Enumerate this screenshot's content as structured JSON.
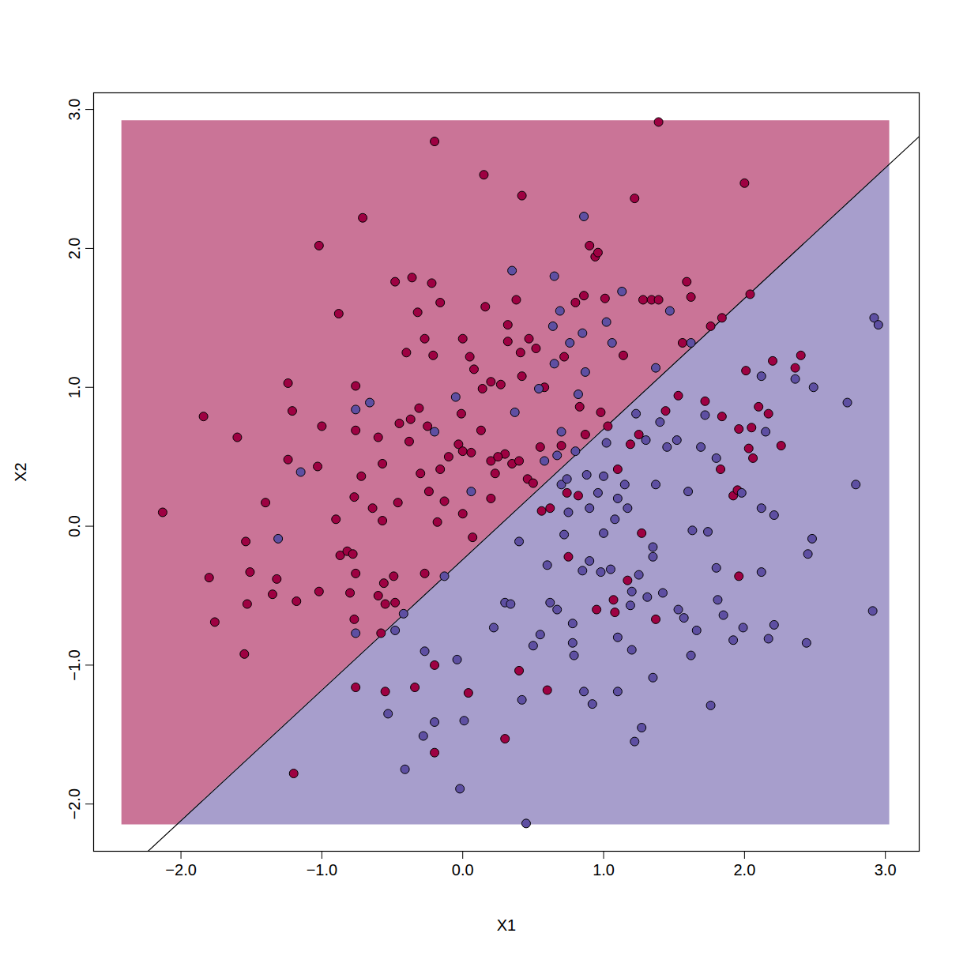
{
  "chart_data": {
    "type": "scatter",
    "xlabel": "X1",
    "ylabel": "X2",
    "xlim": [
      -2.62,
      3.24
    ],
    "ylim": [
      -2.34,
      3.12
    ],
    "xticks": [
      -2,
      -1,
      0,
      1,
      2,
      3
    ],
    "yticks": [
      -2,
      -1,
      0,
      1,
      2,
      3
    ],
    "boundary": {
      "slope": 0.94,
      "intercept": -0.24
    },
    "regions": {
      "xlim": [
        -2.42,
        3.03
      ],
      "ylim": [
        -2.15,
        2.92
      ],
      "colors": [
        "#9E0142",
        "#5E4FA2"
      ]
    },
    "series": [
      {
        "color": "#9E0142",
        "points": [
          [
            -2.13,
            0.1
          ],
          [
            -1.84,
            0.79
          ],
          [
            -1.8,
            -0.37
          ],
          [
            -1.76,
            -0.69
          ],
          [
            -1.6,
            0.64
          ],
          [
            -1.55,
            -0.92
          ],
          [
            -1.54,
            -0.11
          ],
          [
            -1.53,
            -0.56
          ],
          [
            -1.51,
            -0.33
          ],
          [
            -1.4,
            0.17
          ],
          [
            -1.35,
            -0.49
          ],
          [
            -1.32,
            -0.38
          ],
          [
            -1.24,
            1.03
          ],
          [
            -1.24,
            0.48
          ],
          [
            -1.21,
            0.83
          ],
          [
            -1.18,
            -0.54
          ],
          [
            -1.2,
            -1.78
          ],
          [
            -1.02,
            2.02
          ],
          [
            -1.02,
            -0.47
          ],
          [
            -1.0,
            0.72
          ],
          [
            -1.03,
            0.43
          ],
          [
            -0.9,
            0.05
          ],
          [
            -0.88,
            1.53
          ],
          [
            -0.87,
            -0.21
          ],
          [
            -0.82,
            -0.18
          ],
          [
            -0.8,
            -0.48
          ],
          [
            -0.78,
            -0.2
          ],
          [
            -0.77,
            -0.67
          ],
          [
            -0.77,
            0.21
          ],
          [
            -0.76,
            1.01
          ],
          [
            -0.76,
            0.69
          ],
          [
            -0.76,
            -0.34
          ],
          [
            -0.76,
            -1.16
          ],
          [
            -0.72,
            0.36
          ],
          [
            -0.71,
            2.22
          ],
          [
            -0.64,
            0.13
          ],
          [
            -0.6,
            0.64
          ],
          [
            -0.6,
            -0.5
          ],
          [
            -0.58,
            -0.77
          ],
          [
            -0.57,
            0.45
          ],
          [
            -0.57,
            0.04
          ],
          [
            -0.56,
            -0.41
          ],
          [
            -0.55,
            -0.56
          ],
          [
            -0.55,
            -1.19
          ],
          [
            -0.49,
            -0.36
          ],
          [
            -0.48,
            1.76
          ],
          [
            -0.48,
            -0.55
          ],
          [
            -0.46,
            0.17
          ],
          [
            -0.45,
            0.74
          ],
          [
            -0.4,
            1.25
          ],
          [
            -0.38,
            0.61
          ],
          [
            -0.37,
            0.77
          ],
          [
            -0.36,
            1.79
          ],
          [
            -0.34,
            -1.16
          ],
          [
            -0.32,
            1.54
          ],
          [
            -0.31,
            0.85
          ],
          [
            -0.3,
            0.38
          ],
          [
            -0.27,
            1.35
          ],
          [
            -0.27,
            -0.34
          ],
          [
            -0.25,
            0.72
          ],
          [
            -0.24,
            0.25
          ],
          [
            -0.22,
            1.75
          ],
          [
            -0.21,
            1.23
          ],
          [
            -0.2,
            2.77
          ],
          [
            -0.2,
            -1.0
          ],
          [
            -0.2,
            -1.63
          ],
          [
            -0.18,
            0.03
          ],
          [
            -0.16,
            1.61
          ],
          [
            -0.16,
            0.41
          ],
          [
            -0.13,
            0.18
          ],
          [
            -0.03,
            0.59
          ],
          [
            -0.01,
            0.81
          ],
          [
            0.0,
            1.35
          ],
          [
            0.0,
            0.54
          ],
          [
            0.0,
            0.09
          ],
          [
            0.04,
            -1.2
          ],
          [
            0.05,
            1.22
          ],
          [
            0.06,
            0.53
          ],
          [
            0.08,
            1.13
          ],
          [
            0.07,
            -0.08
          ],
          [
            0.13,
            0.69
          ],
          [
            0.14,
            0.99
          ],
          [
            0.15,
            2.53
          ],
          [
            0.16,
            1.58
          ],
          [
            0.2,
            1.04
          ],
          [
            0.2,
            0.47
          ],
          [
            0.23,
            0.38
          ],
          [
            0.27,
            1.02
          ],
          [
            0.3,
            0.52
          ],
          [
            0.32,
            1.45
          ],
          [
            0.32,
            1.33
          ],
          [
            0.35,
            0.45
          ],
          [
            0.38,
            1.63
          ],
          [
            0.4,
            0.47
          ],
          [
            0.41,
            1.25
          ],
          [
            0.42,
            2.38
          ],
          [
            0.42,
            1.08
          ],
          [
            0.4,
            -1.04
          ],
          [
            0.3,
            -1.53
          ],
          [
            0.46,
            0.34
          ],
          [
            0.47,
            1.35
          ],
          [
            0.5,
            0.31
          ],
          [
            0.52,
            1.28
          ],
          [
            0.56,
            0.11
          ],
          [
            0.58,
            1.0
          ],
          [
            0.6,
            -1.18
          ],
          [
            0.62,
            0.13
          ],
          [
            0.7,
            0.58
          ],
          [
            0.72,
            1.22
          ],
          [
            0.74,
            0.24
          ],
          [
            0.75,
            -0.22
          ],
          [
            0.8,
            1.61
          ],
          [
            0.82,
            0.22
          ],
          [
            0.83,
            0.86
          ],
          [
            0.86,
            1.66
          ],
          [
            0.87,
            0.66
          ],
          [
            0.9,
            2.02
          ],
          [
            0.94,
            1.94
          ],
          [
            0.95,
            -0.6
          ],
          [
            0.96,
            1.97
          ],
          [
            0.98,
            0.82
          ],
          [
            1.01,
            1.64
          ],
          [
            1.03,
            0.72
          ],
          [
            1.07,
            -0.53
          ],
          [
            1.08,
            -0.62
          ],
          [
            1.1,
            0.41
          ],
          [
            1.14,
            1.23
          ],
          [
            1.17,
            -0.39
          ],
          [
            1.19,
            0.59
          ],
          [
            1.22,
            2.36
          ],
          [
            1.25,
            0.66
          ],
          [
            1.27,
            -0.05
          ],
          [
            1.28,
            1.63
          ],
          [
            1.34,
            1.63
          ],
          [
            1.37,
            -0.67
          ],
          [
            1.39,
            1.63
          ],
          [
            1.39,
            2.91
          ],
          [
            1.44,
            0.83
          ],
          [
            1.53,
            0.94
          ],
          [
            1.56,
            1.32
          ],
          [
            1.59,
            1.76
          ],
          [
            1.62,
            1.65
          ],
          [
            1.72,
            0.9
          ],
          [
            1.76,
            1.44
          ],
          [
            1.83,
            0.41
          ],
          [
            1.84,
            1.5
          ],
          [
            1.84,
            0.79
          ],
          [
            1.92,
            0.22
          ],
          [
            1.95,
            0.26
          ],
          [
            1.96,
            -0.36
          ],
          [
            1.96,
            0.7
          ],
          [
            2.0,
            2.47
          ],
          [
            2.01,
            1.12
          ],
          [
            2.03,
            0.56
          ],
          [
            2.04,
            1.67
          ],
          [
            2.05,
            0.71
          ],
          [
            2.06,
            0.49
          ],
          [
            2.1,
            0.86
          ],
          [
            2.17,
            0.81
          ],
          [
            2.2,
            1.19
          ],
          [
            2.26,
            0.58
          ],
          [
            2.36,
            1.14
          ],
          [
            2.4,
            1.23
          ],
          [
            0.2,
            0.2
          ],
          [
            0.25,
            0.5
          ],
          [
            -0.1,
            0.5
          ],
          [
            0.55,
            0.57
          ]
        ]
      },
      {
        "color": "#5E4FA2",
        "points": [
          [
            -1.31,
            -0.09
          ],
          [
            -1.15,
            0.39
          ],
          [
            -0.76,
            0.84
          ],
          [
            -0.76,
            -0.77
          ],
          [
            -0.66,
            0.89
          ],
          [
            -0.53,
            -1.35
          ],
          [
            -0.48,
            -0.75
          ],
          [
            -0.42,
            -0.63
          ],
          [
            -0.41,
            -1.75
          ],
          [
            -0.28,
            -1.51
          ],
          [
            -0.27,
            -0.9
          ],
          [
            -0.2,
            -1.41
          ],
          [
            -0.2,
            0.68
          ],
          [
            -0.13,
            -0.36
          ],
          [
            -0.05,
            0.93
          ],
          [
            -0.04,
            -0.96
          ],
          [
            -0.02,
            -1.89
          ],
          [
            0.01,
            -1.4
          ],
          [
            0.06,
            0.25
          ],
          [
            0.22,
            -0.73
          ],
          [
            0.3,
            -0.55
          ],
          [
            0.34,
            -0.56
          ],
          [
            0.35,
            1.84
          ],
          [
            0.37,
            0.82
          ],
          [
            0.4,
            -0.11
          ],
          [
            0.42,
            -1.25
          ],
          [
            0.45,
            -2.14
          ],
          [
            0.5,
            -0.86
          ],
          [
            0.54,
            0.99
          ],
          [
            0.55,
            -0.78
          ],
          [
            0.58,
            0.47
          ],
          [
            0.6,
            -0.28
          ],
          [
            0.62,
            -0.55
          ],
          [
            0.64,
            1.44
          ],
          [
            0.65,
            1.8
          ],
          [
            0.65,
            1.17
          ],
          [
            0.67,
            0.51
          ],
          [
            0.67,
            -0.6
          ],
          [
            0.69,
            1.55
          ],
          [
            0.7,
            0.3
          ],
          [
            0.72,
            -0.06
          ],
          [
            0.74,
            0.34
          ],
          [
            0.76,
            1.32
          ],
          [
            0.78,
            -0.7
          ],
          [
            0.78,
            -0.84
          ],
          [
            0.79,
            -0.93
          ],
          [
            0.8,
            0.54
          ],
          [
            0.82,
            0.95
          ],
          [
            0.85,
            1.39
          ],
          [
            0.85,
            -0.32
          ],
          [
            0.86,
            2.23
          ],
          [
            0.86,
            -1.19
          ],
          [
            0.87,
            1.11
          ],
          [
            0.88,
            0.37
          ],
          [
            0.9,
            0.13
          ],
          [
            0.9,
            -0.25
          ],
          [
            0.92,
            -1.28
          ],
          [
            0.96,
            0.24
          ],
          [
            0.98,
            -0.33
          ],
          [
            1.0,
            0.36
          ],
          [
            1.02,
            1.47
          ],
          [
            1.02,
            0.6
          ],
          [
            1.05,
            -0.31
          ],
          [
            1.06,
            1.32
          ],
          [
            1.08,
            0.05
          ],
          [
            1.1,
            -0.8
          ],
          [
            1.1,
            -1.19
          ],
          [
            1.13,
            1.69
          ],
          [
            1.15,
            0.3
          ],
          [
            1.17,
            0.13
          ],
          [
            1.19,
            -0.57
          ],
          [
            1.2,
            -0.47
          ],
          [
            1.2,
            -0.89
          ],
          [
            1.22,
            -1.55
          ],
          [
            1.23,
            0.81
          ],
          [
            1.25,
            -0.35
          ],
          [
            1.27,
            -1.45
          ],
          [
            1.3,
            0.62
          ],
          [
            1.31,
            -0.51
          ],
          [
            1.35,
            -0.15
          ],
          [
            1.35,
            -0.22
          ],
          [
            1.35,
            -1.09
          ],
          [
            1.37,
            0.3
          ],
          [
            1.37,
            1.14
          ],
          [
            1.42,
            -0.48
          ],
          [
            1.45,
            0.57
          ],
          [
            1.47,
            1.55
          ],
          [
            1.52,
            0.62
          ],
          [
            1.53,
            -0.6
          ],
          [
            1.57,
            -0.66
          ],
          [
            1.62,
            -0.93
          ],
          [
            1.63,
            -0.03
          ],
          [
            1.66,
            -0.75
          ],
          [
            1.69,
            0.57
          ],
          [
            1.72,
            0.8
          ],
          [
            1.74,
            -0.04
          ],
          [
            1.76,
            -1.29
          ],
          [
            1.8,
            0.49
          ],
          [
            1.8,
            -0.3
          ],
          [
            1.81,
            -0.53
          ],
          [
            1.85,
            -0.64
          ],
          [
            1.92,
            -0.82
          ],
          [
            1.98,
            0.24
          ],
          [
            1.99,
            -0.73
          ],
          [
            2.12,
            1.08
          ],
          [
            2.12,
            0.13
          ],
          [
            2.12,
            -0.33
          ],
          [
            2.15,
            0.68
          ],
          [
            2.17,
            -0.81
          ],
          [
            2.21,
            0.08
          ],
          [
            2.21,
            -0.71
          ],
          [
            2.36,
            1.06
          ],
          [
            2.44,
            -0.84
          ],
          [
            2.45,
            -0.2
          ],
          [
            2.48,
            -0.09
          ],
          [
            2.49,
            1.0
          ],
          [
            2.73,
            0.89
          ],
          [
            2.79,
            0.3
          ],
          [
            2.91,
            -0.61
          ],
          [
            2.92,
            1.5
          ],
          [
            2.95,
            1.45
          ],
          [
            1.62,
            1.32
          ],
          [
            1.6,
            0.25
          ],
          [
            1.4,
            0.75
          ],
          [
            0.7,
            0.68
          ],
          [
            0.75,
            0.1
          ],
          [
            1.0,
            -0.05
          ],
          [
            1.1,
            0.2
          ]
        ]
      }
    ]
  }
}
